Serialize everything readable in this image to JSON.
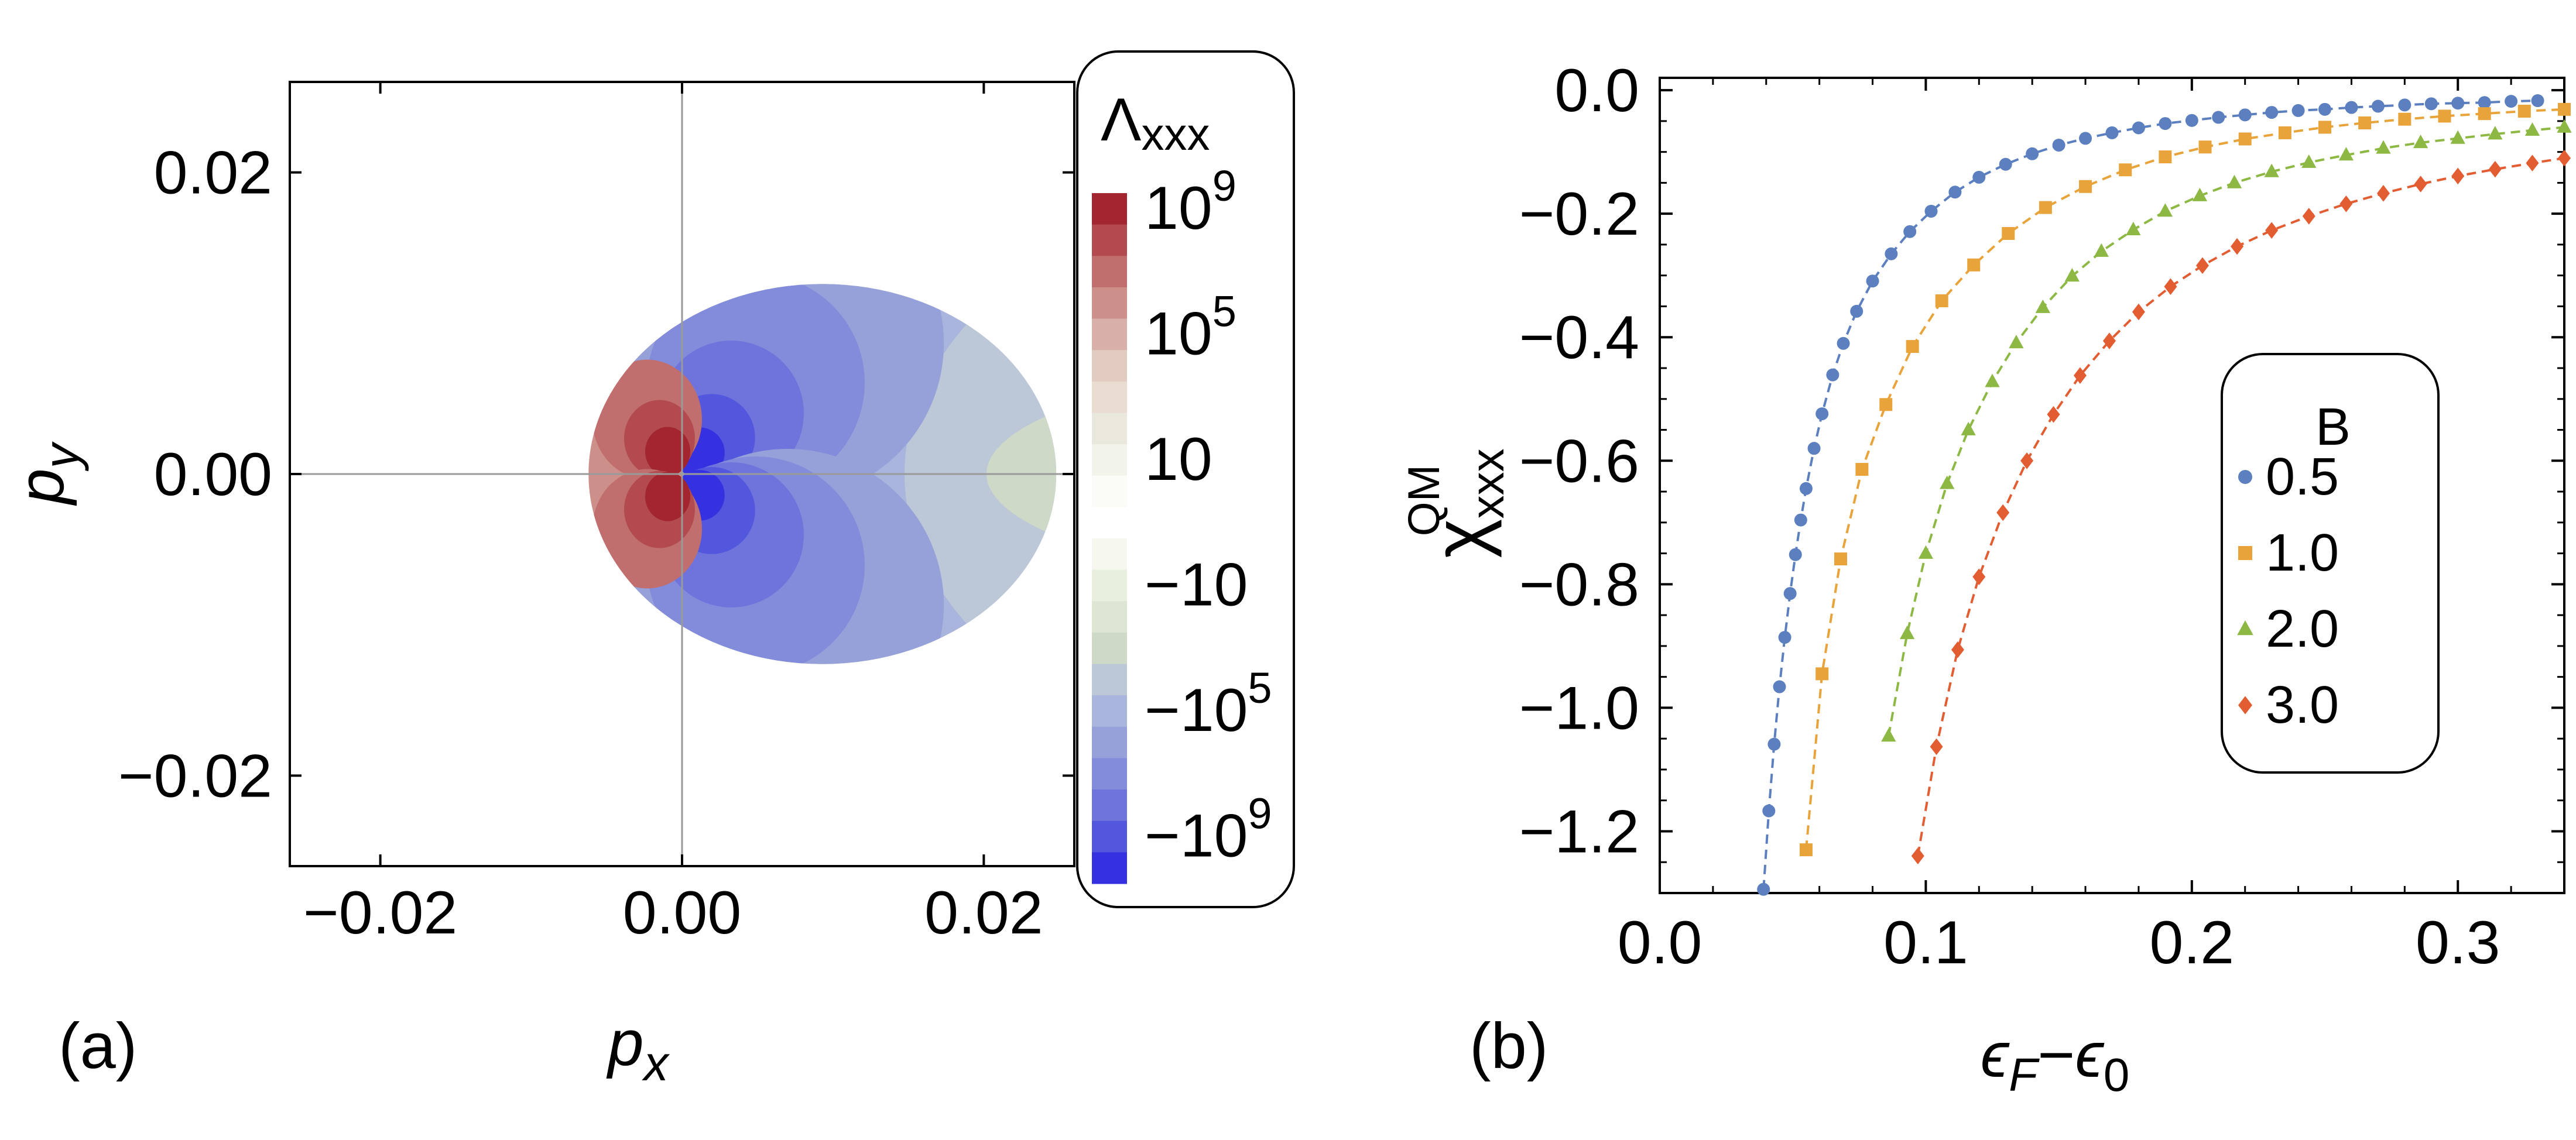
{
  "chart_data": [
    {
      "type": "heatmap",
      "panel_label": "(a)",
      "xlabel": "p",
      "xlabel_sub": "x",
      "ylabel": "p",
      "ylabel_sub": "y",
      "xlim": [
        -0.026,
        0.026
      ],
      "ylim": [
        -0.026,
        0.026
      ],
      "xticks": [
        {
          "value": -0.02,
          "label": "−0.02"
        },
        {
          "value": 0.0,
          "label": "0.00"
        },
        {
          "value": 0.02,
          "label": "0.02"
        }
      ],
      "yticks": [
        {
          "value": 0.02,
          "label": "0.02"
        },
        {
          "value": 0.0,
          "label": "0.00"
        },
        {
          "value": -0.02,
          "label": "−0.02"
        }
      ],
      "fermi_surface": {
        "x_min": -0.0062,
        "x_max": 0.0248,
        "y_max": 0.0126
      },
      "colorbar": {
        "title": "Λ",
        "title_sub": "xxx",
        "tick_labels": [
          {
            "base": "10",
            "exp": "9",
            "level": 0
          },
          {
            "base": "10",
            "exp": "5",
            "level": 4
          },
          {
            "base": "10",
            "exp": "",
            "level": 8
          },
          {
            "base": "−10",
            "exp": "",
            "level": 12
          },
          {
            "base": "−10",
            "exp": "5",
            "level": 16
          },
          {
            "base": "−10",
            "exp": "9",
            "level": 20
          }
        ],
        "level_colors": [
          "#a2252f",
          "#b24a4f",
          "#c06e6e",
          "#cc8f8a",
          "#d8b0a9",
          "#e2cbc1",
          "#e9dcd1",
          "#eae8dc",
          "#f2f4ec",
          "#fbfcf8",
          "#ffffff",
          "#f6f8f0",
          "#e8efdf",
          "#dde6d2",
          "#ced9c8",
          "#bcc7d8",
          "#a9b5dc",
          "#96a1da",
          "#838cda",
          "#6f74dc",
          "#5357de",
          "#3631e0"
        ]
      }
    },
    {
      "type": "scatter",
      "panel_label": "(b)",
      "xlabel": "εF−ε0",
      "xlabel_parts": {
        "a": "ϵ",
        "a_sub": "F",
        "op": "−",
        "b": "ϵ",
        "b_sub": "0"
      },
      "ylabel": "χxxx QM",
      "ylabel_parts": {
        "sym": "χ",
        "sub": "xxx",
        "sup": "QM"
      },
      "xlim": [
        0.0,
        0.34
      ],
      "ylim": [
        -1.3,
        0.02
      ],
      "xticks": [
        {
          "value": 0.0,
          "label": "0.0"
        },
        {
          "value": 0.1,
          "label": "0.1"
        },
        {
          "value": 0.2,
          "label": "0.2"
        },
        {
          "value": 0.3,
          "label": "0.3"
        }
      ],
      "yticks": [
        {
          "value": 0.0,
          "label": "0.0"
        },
        {
          "value": -0.2,
          "label": "−0.2"
        },
        {
          "value": -0.4,
          "label": "−0.4"
        },
        {
          "value": -0.6,
          "label": "−0.6"
        },
        {
          "value": -0.8,
          "label": "−0.8"
        },
        {
          "value": -1.0,
          "label": "−1.0"
        },
        {
          "value": -1.2,
          "label": "−1.2"
        }
      ],
      "legend": {
        "title": "B",
        "position": "right"
      },
      "series": [
        {
          "name": "0.5",
          "marker": "circle",
          "color": "#5b7fbf",
          "x": [
            0.039,
            0.041,
            0.043,
            0.045,
            0.047,
            0.049,
            0.051,
            0.053,
            0.055,
            0.058,
            0.061,
            0.065,
            0.069,
            0.074,
            0.08,
            0.087,
            0.094,
            0.102,
            0.111,
            0.12,
            0.13,
            0.14,
            0.15,
            0.16,
            0.17,
            0.18,
            0.19,
            0.2,
            0.21,
            0.22,
            0.23,
            0.24,
            0.25,
            0.26,
            0.27,
            0.28,
            0.29,
            0.3,
            0.31,
            0.32,
            0.33
          ],
          "y": [
            -1.294,
            -1.167,
            -1.059,
            -0.966,
            -0.886,
            -0.815,
            -0.752,
            -0.696,
            -0.645,
            -0.58,
            -0.524,
            -0.461,
            -0.41,
            -0.358,
            -0.309,
            -0.265,
            -0.229,
            -0.196,
            -0.165,
            -0.141,
            -0.12,
            -0.103,
            -0.089,
            -0.078,
            -0.069,
            -0.061,
            -0.054,
            -0.049,
            -0.044,
            -0.04,
            -0.036,
            -0.033,
            -0.031,
            -0.028,
            -0.026,
            -0.024,
            -0.022,
            -0.021,
            -0.02,
            -0.018,
            -0.017
          ]
        },
        {
          "name": "1.0",
          "marker": "square",
          "color": "#e8a33a",
          "x": [
            0.055,
            0.061,
            0.068,
            0.076,
            0.085,
            0.095,
            0.106,
            0.118,
            0.131,
            0.145,
            0.16,
            0.175,
            0.19,
            0.205,
            0.22,
            0.235,
            0.25,
            0.265,
            0.28,
            0.295,
            0.31,
            0.325,
            0.34
          ],
          "y": [
            -1.23,
            -0.945,
            -0.759,
            -0.614,
            -0.509,
            -0.415,
            -0.341,
            -0.283,
            -0.232,
            -0.19,
            -0.156,
            -0.129,
            -0.108,
            -0.092,
            -0.079,
            -0.069,
            -0.06,
            -0.053,
            -0.047,
            -0.042,
            -0.038,
            -0.034,
            -0.031
          ]
        },
        {
          "name": "2.0",
          "marker": "triangle",
          "color": "#8cb843",
          "x": [
            0.086,
            0.093,
            0.1,
            0.108,
            0.116,
            0.125,
            0.134,
            0.144,
            0.155,
            0.166,
            0.178,
            0.19,
            0.203,
            0.216,
            0.23,
            0.244,
            0.258,
            0.272,
            0.286,
            0.3,
            0.314,
            0.328,
            0.34
          ],
          "y": [
            -1.046,
            -0.88,
            -0.75,
            -0.637,
            -0.55,
            -0.472,
            -0.409,
            -0.352,
            -0.301,
            -0.261,
            -0.226,
            -0.196,
            -0.171,
            -0.15,
            -0.132,
            -0.117,
            -0.105,
            -0.094,
            -0.085,
            -0.078,
            -0.071,
            -0.065,
            -0.06
          ]
        },
        {
          "name": "3.0",
          "marker": "diamond",
          "color": "#e35d33",
          "x": [
            0.097,
            0.104,
            0.112,
            0.12,
            0.129,
            0.138,
            0.148,
            0.158,
            0.169,
            0.18,
            0.192,
            0.204,
            0.217,
            0.23,
            0.244,
            0.258,
            0.272,
            0.286,
            0.3,
            0.314,
            0.328,
            0.34
          ],
          "y": [
            -1.24,
            -1.063,
            -0.906,
            -0.788,
            -0.684,
            -0.6,
            -0.525,
            -0.462,
            -0.406,
            -0.359,
            -0.318,
            -0.284,
            -0.253,
            -0.227,
            -0.204,
            -0.184,
            -0.167,
            -0.152,
            -0.139,
            -0.128,
            -0.118,
            -0.11
          ]
        }
      ]
    }
  ]
}
